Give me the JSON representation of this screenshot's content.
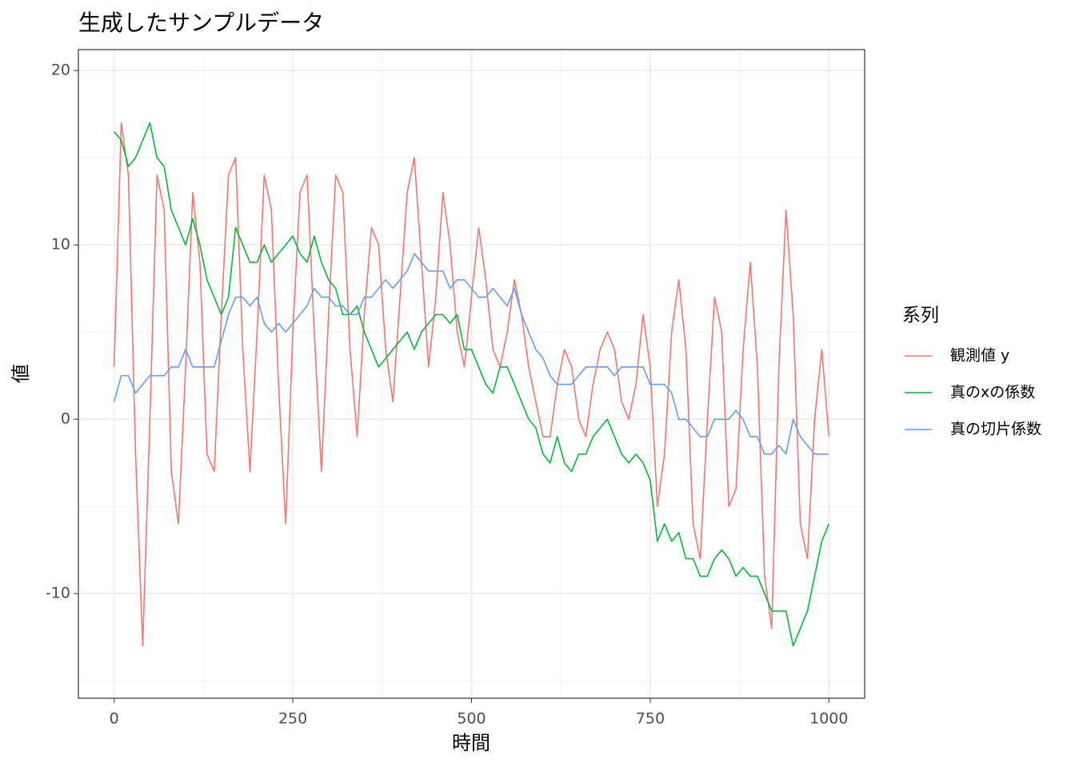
{
  "chart_data": {
    "type": "line",
    "title": "生成したサンプルデータ",
    "xlabel": "時間",
    "ylabel": "値",
    "legend_title": "系列",
    "legend": "right",
    "grid": true,
    "xlim": [
      -50,
      1050
    ],
    "ylim": [
      -16,
      21.2
    ],
    "xticks": [
      0,
      250,
      500,
      750,
      1000
    ],
    "yticks": [
      -10,
      0,
      10,
      20
    ],
    "xminorticks": [
      125,
      375,
      625,
      875
    ],
    "yminorticks": [
      -15,
      -5,
      5,
      15
    ],
    "x": [
      0,
      10,
      20,
      30,
      40,
      50,
      60,
      70,
      80,
      90,
      100,
      110,
      120,
      130,
      140,
      150,
      160,
      170,
      180,
      190,
      200,
      210,
      220,
      230,
      240,
      250,
      260,
      270,
      280,
      290,
      300,
      310,
      320,
      330,
      340,
      350,
      360,
      370,
      380,
      390,
      400,
      410,
      420,
      430,
      440,
      450,
      460,
      470,
      480,
      490,
      500,
      510,
      520,
      530,
      540,
      550,
      560,
      570,
      580,
      590,
      600,
      610,
      620,
      630,
      640,
      650,
      660,
      670,
      680,
      690,
      700,
      710,
      720,
      730,
      740,
      750,
      760,
      770,
      780,
      790,
      800,
      810,
      820,
      830,
      840,
      850,
      860,
      870,
      880,
      890,
      900,
      910,
      920,
      930,
      940,
      950,
      960,
      970,
      980,
      990,
      1000
    ],
    "series": [
      {
        "name": "観測値 y",
        "color": "#f8766d",
        "values": [
          3,
          17,
          14,
          -2,
          -13,
          0,
          14,
          12,
          -3,
          -6,
          3,
          13,
          9,
          -2,
          -3,
          6,
          14,
          15,
          4,
          -3,
          5,
          14,
          12,
          2,
          -6,
          5,
          13,
          14,
          5,
          -3,
          6,
          14,
          13,
          4,
          -1,
          6,
          11,
          10,
          4,
          1,
          7,
          13,
          15,
          9,
          3,
          7,
          13,
          10,
          5,
          3,
          7,
          11,
          8,
          4,
          3,
          5,
          8,
          6,
          3,
          1,
          -1,
          -1,
          2,
          4,
          3,
          0,
          -1,
          2,
          4,
          5,
          4,
          1,
          0,
          2,
          6,
          3,
          -5,
          -2,
          5,
          8,
          4,
          -6,
          -8,
          0,
          7,
          5,
          -5,
          -4,
          4,
          9,
          3,
          -9,
          -12,
          3,
          12,
          6,
          -6,
          -8,
          0,
          4,
          -1
        ]
      },
      {
        "name": "真のxの係数",
        "color": "#00ba38",
        "values": [
          16.5,
          16,
          14.5,
          15,
          16,
          17,
          15,
          14.5,
          12,
          11,
          10,
          11.5,
          10,
          8,
          7,
          6,
          7,
          11,
          10,
          9,
          9,
          10,
          9,
          9.5,
          10,
          10.5,
          9.5,
          9,
          10.5,
          9,
          8,
          7.5,
          6,
          6,
          6.5,
          5,
          4,
          3,
          3.5,
          4,
          4.5,
          5,
          4,
          5,
          5.5,
          6,
          6,
          5.5,
          6,
          4,
          4,
          3,
          2,
          1.5,
          3,
          3,
          2,
          1,
          0,
          -0.5,
          -2,
          -2.5,
          -1,
          -2.5,
          -3,
          -2,
          -2,
          -1,
          -0.5,
          0,
          -1,
          -2,
          -2.5,
          -2,
          -2.5,
          -3.5,
          -7,
          -6,
          -7,
          -6.5,
          -8,
          -8,
          -9,
          -9,
          -8,
          -7.5,
          -8,
          -9,
          -8.5,
          -9,
          -9,
          -10,
          -11,
          -11,
          -11,
          -13,
          -12,
          -11,
          -9,
          -7,
          -6
        ]
      },
      {
        "name": "真の切片係数",
        "color": "#619cff",
        "values": [
          1,
          2.5,
          2.5,
          1.5,
          2,
          2.5,
          2.5,
          2.5,
          3,
          3,
          4,
          3,
          3,
          3,
          3,
          4.5,
          6,
          7,
          7,
          6.5,
          7,
          5.5,
          5,
          5.5,
          5,
          5.5,
          6,
          6.5,
          7.5,
          7,
          7,
          6.5,
          6.5,
          6,
          6,
          7,
          7,
          7.5,
          8,
          7.5,
          8,
          8.5,
          9.5,
          9,
          8.5,
          8.5,
          8.5,
          7.5,
          8,
          8,
          7.5,
          7,
          7,
          7.5,
          7,
          6.5,
          7.5,
          6,
          5,
          4,
          3.5,
          2.5,
          2,
          2,
          2,
          2.5,
          3,
          3,
          3,
          3,
          2.5,
          3,
          3,
          3,
          3,
          2,
          2,
          2,
          1.5,
          0,
          0,
          -0.5,
          -1,
          -1,
          0,
          0,
          0,
          0.5,
          0,
          -1,
          -1,
          -2,
          -2,
          -1.5,
          -2,
          0,
          -1,
          -1.5,
          -2,
          -2,
          -2
        ]
      }
    ]
  }
}
